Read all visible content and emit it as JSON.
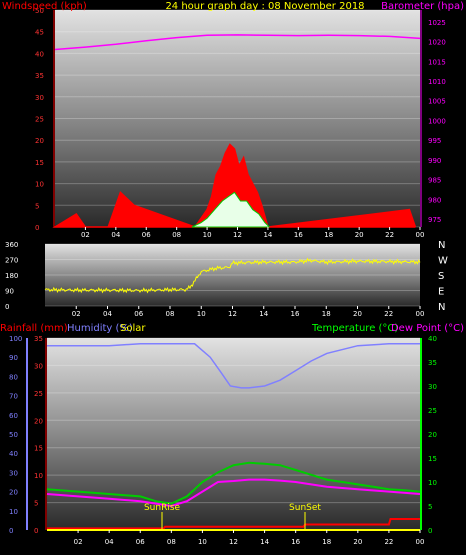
{
  "header": {
    "left_title": "Windspeed (kph)",
    "center_title": "24 hour graph day : 08 November 2018",
    "right_title": "Barometer (hpa)"
  },
  "bottom_header": {
    "rainfall": "Rainfall (mm)",
    "humidity": "Humidity (%)",
    "solar": "Solar",
    "temperature": "Temperature (°C)",
    "dewpoint": "Dew Point (°C)"
  },
  "labels": {
    "sunrise": "SunRise",
    "sunset": "SunSet"
  },
  "colors": {
    "wind": "#ff0000",
    "gust": "#ff0000",
    "baro": "#ff00ff",
    "dir": "#ffff00",
    "rain": "#ff0000",
    "humidity": "#8080ff",
    "solar": "#ffff00",
    "temp": "#00cc00",
    "dew": "#ff00ff"
  },
  "chart_data": [
    {
      "type": "line",
      "x_ticks": [
        "02",
        "04",
        "06",
        "08",
        "10",
        "12",
        "14",
        "16",
        "18",
        "20",
        "22",
        "00"
      ],
      "left_axis": {
        "ticks": [
          0,
          5,
          10,
          15,
          20,
          25,
          30,
          35,
          40,
          45,
          50
        ],
        "ylim": [
          0,
          50
        ]
      },
      "right_axis": {
        "ticks": [
          975,
          980,
          985,
          990,
          995,
          1000,
          1005,
          1010,
          1015,
          1020,
          1025
        ],
        "ylim": [
          973,
          1028
        ]
      },
      "series": [
        {
          "key": "barometer",
          "x": [
            0,
            2,
            4,
            6,
            8,
            10,
            12,
            14,
            16,
            18,
            20,
            22,
            24
          ],
          "values": [
            1018,
            1018.6,
            1019.3,
            1020.2,
            1021,
            1021.6,
            1021.7,
            1021.6,
            1021.5,
            1021.6,
            1021.5,
            1021.3,
            1020.8
          ]
        },
        {
          "key": "gust",
          "x": [
            0,
            1.4,
            2,
            3.5,
            4.3,
            5.2,
            9.2,
            9.6,
            10,
            10.3,
            10.6,
            10.9,
            11.2,
            11.5,
            11.8,
            12.1,
            12.4,
            12.7,
            13,
            13.3,
            13.6,
            14,
            23.3,
            23.7
          ],
          "values": [
            0,
            3,
            0,
            0,
            8,
            5,
            0,
            2,
            4,
            7,
            12,
            14,
            17,
            19,
            18,
            14,
            16,
            12,
            10,
            8,
            5,
            0,
            4,
            0
          ]
        },
        {
          "key": "windspeed",
          "x": [
            9,
            9.6,
            10,
            10.5,
            11,
            11.4,
            11.8,
            12.2,
            12.6,
            13,
            13.4,
            13.8,
            14.1
          ],
          "values": [
            0,
            1,
            2,
            4,
            6,
            7,
            8,
            6,
            6,
            4,
            3,
            1,
            0
          ]
        }
      ]
    },
    {
      "type": "line",
      "x_ticks": [
        "02",
        "04",
        "06",
        "08",
        "10",
        "12",
        "14",
        "16",
        "18",
        "20",
        "22",
        "00"
      ],
      "left_axis": {
        "ticks": [
          0,
          90,
          180,
          270,
          360
        ],
        "ylim": [
          0,
          360
        ]
      },
      "right_axis": {
        "ticks": [
          "N",
          "W",
          "S",
          "E",
          "N"
        ]
      },
      "series": [
        {
          "key": "wind_direction",
          "x": [
            0,
            2,
            4,
            6,
            8,
            9,
            9.3,
            10,
            11,
            11.8,
            12,
            14,
            16,
            17,
            18,
            20,
            22,
            24
          ],
          "values": [
            95,
            92,
            92,
            90,
            95,
            95,
            110,
            200,
            220,
            225,
            250,
            255,
            255,
            265,
            255,
            260,
            258,
            255
          ]
        }
      ]
    },
    {
      "type": "line",
      "x_ticks": [
        "02",
        "04",
        "06",
        "08",
        "10",
        "12",
        "14",
        "16",
        "18",
        "20",
        "22",
        "00"
      ],
      "left_axis": {
        "ticks": [
          0,
          5,
          10,
          15,
          20,
          25,
          30,
          35
        ],
        "ylim": [
          0,
          35
        ]
      },
      "humidity_axis": {
        "ticks": [
          0,
          10,
          20,
          30,
          40,
          50,
          60,
          70,
          80,
          90,
          100
        ],
        "ylim": [
          0,
          100
        ]
      },
      "right_axis": {
        "ticks": [
          0,
          5,
          10,
          15,
          20,
          25,
          30,
          35,
          40
        ],
        "ylim": [
          0,
          40
        ]
      },
      "sunrise_hour": 7.4,
      "sunset_hour": 16.6,
      "series": [
        {
          "key": "humidity",
          "x": [
            0,
            2,
            4,
            6,
            8,
            9.5,
            10.5,
            11.2,
            11.8,
            12.5,
            13,
            14,
            15,
            16,
            17,
            18,
            20,
            22,
            24
          ],
          "values": [
            96,
            96,
            96,
            97,
            97,
            97,
            90,
            82,
            75,
            74,
            74,
            75,
            78,
            83,
            88,
            92,
            96,
            97,
            97
          ]
        },
        {
          "key": "temperature",
          "x": [
            0,
            2,
            4,
            6,
            7,
            8,
            9,
            10,
            10.5,
            11,
            12,
            13,
            14,
            15,
            16,
            17,
            18,
            19,
            20,
            21,
            22,
            23,
            24
          ],
          "values": [
            8.5,
            8,
            7.5,
            7,
            6,
            5.5,
            7,
            10,
            11,
            12,
            13.5,
            14,
            13.8,
            13.5,
            12.5,
            11.5,
            10.5,
            10,
            9.5,
            9,
            8.5,
            8.3,
            8
          ]
        },
        {
          "key": "dewpoint",
          "x": [
            0,
            2,
            4,
            6,
            7,
            8,
            9,
            10,
            11,
            12,
            13,
            14,
            15,
            16,
            17,
            18,
            20,
            22,
            24
          ],
          "values": [
            7.5,
            7,
            6.5,
            6,
            5.5,
            5,
            6,
            8,
            10,
            10.2,
            10.5,
            10.5,
            10.3,
            10,
            9.5,
            9,
            8.5,
            8,
            7.5
          ]
        },
        {
          "key": "rainfall",
          "x": [
            0,
            7.5,
            7.6,
            16.5,
            16.6,
            22,
            22.1,
            24
          ],
          "values": [
            0.3,
            0.3,
            0.6,
            0.6,
            1,
            1,
            2,
            2
          ]
        },
        {
          "key": "solar",
          "x": [
            0,
            24
          ],
          "values": [
            0,
            0
          ]
        }
      ]
    }
  ]
}
